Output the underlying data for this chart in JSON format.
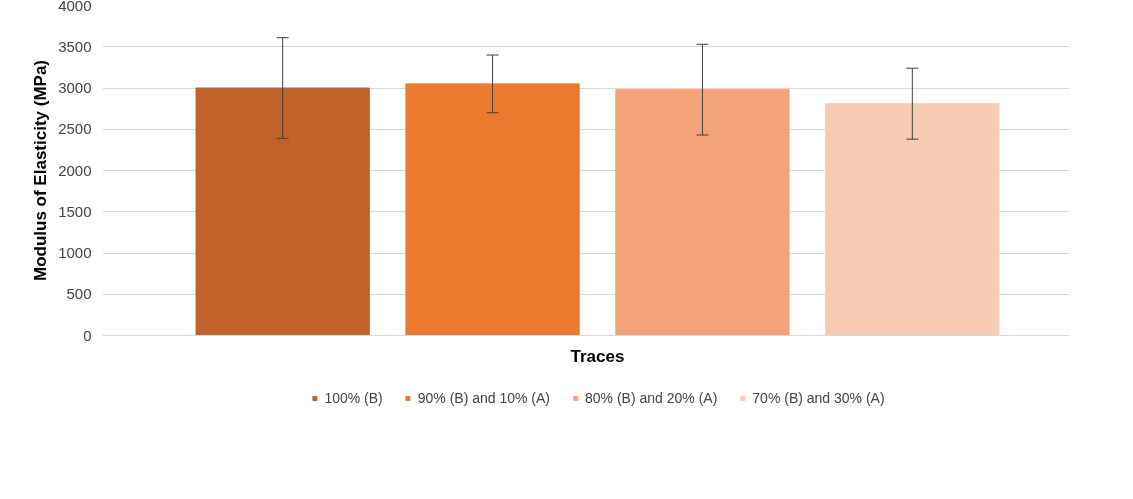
{
  "chart_data": {
    "type": "bar",
    "xlabel": "Traces",
    "ylabel": "Modulus of Elasticity (MPa)",
    "categories": [
      null
    ],
    "series": [
      {
        "name": "100% (B)",
        "color": "#c0622a",
        "values": [
          3000
        ],
        "errors": [
          610
        ]
      },
      {
        "name": "90% (B) and 10% (A)",
        "color": "#ec7a2e",
        "values": [
          3050
        ],
        "errors": [
          350
        ]
      },
      {
        "name": "80% (B) and 20% (A)",
        "color": "#f4a27a",
        "values": [
          2980
        ],
        "errors": [
          550
        ]
      },
      {
        "name": "70% (B) and 30% (A)",
        "color": "#f8cbb5",
        "values": [
          2810
        ],
        "errors": [
          430
        ]
      }
    ],
    "ylim": [
      0,
      4000
    ],
    "yticks": [
      0,
      500,
      1000,
      1500,
      2000,
      2500,
      3000,
      3500,
      4000
    ],
    "grid": "y",
    "legend": "bottom"
  }
}
